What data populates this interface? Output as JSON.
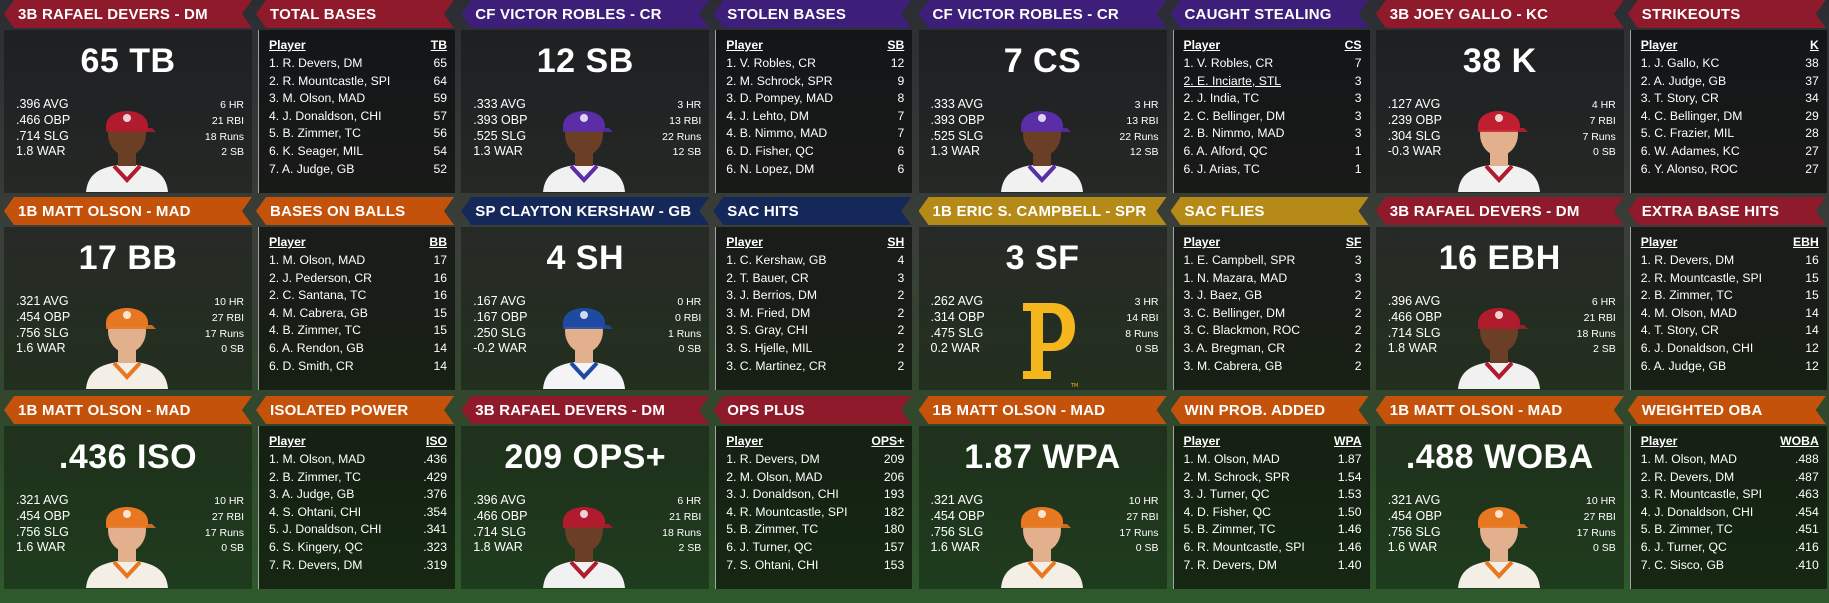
{
  "cards": [
    {
      "header": "3B RAFAEL DEVERS - DM",
      "category": "TOTAL BASES",
      "color": "red",
      "big": "65 TB",
      "avatar": "devers",
      "avg": ".396 AVG",
      "obp": ".466 OBP",
      "slg": ".714 SLG",
      "war": "1.8 WAR",
      "hr": "6 HR",
      "rbi": "21 RBI",
      "runs": "18 Runs",
      "sb": "2 SB",
      "col": "TB",
      "rows": [
        [
          "1. R. Devers, DM",
          "65"
        ],
        [
          "2. R. Mountcastle, SPI",
          "64"
        ],
        [
          "3. M. Olson, MAD",
          "59"
        ],
        [
          "4. J. Donaldson, CHI",
          "57"
        ],
        [
          "5. B. Zimmer, TC",
          "56"
        ],
        [
          "6. K. Seager, MIL",
          "54"
        ],
        [
          "7. A. Judge, GB",
          "52"
        ]
      ]
    },
    {
      "header": "CF VICTOR ROBLES - CR",
      "category": "STOLEN BASES",
      "color": "purple",
      "big": "12 SB",
      "avatar": "robles",
      "avg": ".333 AVG",
      "obp": ".393 OBP",
      "slg": ".525 SLG",
      "war": "1.3 WAR",
      "hr": "3 HR",
      "rbi": "13 RBI",
      "runs": "22 Runs",
      "sb": "12 SB",
      "col": "SB",
      "rows": [
        [
          "1. V. Robles, CR",
          "12"
        ],
        [
          "2. M. Schrock, SPR",
          "9"
        ],
        [
          "3. D. Pompey, MAD",
          "8"
        ],
        [
          "4. J. Lehto, DM",
          "7"
        ],
        [
          "4. B. Nimmo, MAD",
          "7"
        ],
        [
          "6. D. Fisher, QC",
          "6"
        ],
        [
          "6. N. Lopez, DM",
          "6"
        ]
      ]
    },
    {
      "header": "CF VICTOR ROBLES - CR",
      "category": "CAUGHT STEALING",
      "color": "purple",
      "big": "7 CS",
      "avatar": "robles",
      "avg": ".333 AVG",
      "obp": ".393 OBP",
      "slg": ".525 SLG",
      "war": "1.3 WAR",
      "hr": "3 HR",
      "rbi": "13 RBI",
      "runs": "22 Runs",
      "sb": "12 SB",
      "col": "CS",
      "rows": [
        [
          "1. V. Robles, CR",
          "7"
        ],
        [
          "2. E. Inciarte, STL",
          "3"
        ],
        [
          "2. J. India, TC",
          "3"
        ],
        [
          "2. C. Bellinger, DM",
          "3"
        ],
        [
          "2. B. Nimmo, MAD",
          "3"
        ],
        [
          "6. A. Alford, QC",
          "1"
        ],
        [
          "6. J. Arias, TC",
          "1"
        ]
      ]
    },
    {
      "header": "3B JOEY GALLO - KC",
      "category": "STRIKEOUTS",
      "color": "red",
      "big": "38 K",
      "avatar": "gallo",
      "avg": ".127 AVG",
      "obp": ".239 OBP",
      "slg": ".304 SLG",
      "war": "-0.3 WAR",
      "hr": "4 HR",
      "rbi": "7 RBI",
      "runs": "7 Runs",
      "sb": "0 SB",
      "col": "K",
      "rows": [
        [
          "1. J. Gallo, KC",
          "38"
        ],
        [
          "2. A. Judge, GB",
          "37"
        ],
        [
          "3. T. Story, CR",
          "34"
        ],
        [
          "4. C. Bellinger, DM",
          "29"
        ],
        [
          "5. C. Frazier, MIL",
          "28"
        ],
        [
          "6. W. Adames, KC",
          "27"
        ],
        [
          "6. Y. Alonso, ROC",
          "27"
        ]
      ]
    },
    {
      "header": "1B MATT OLSON - MAD",
      "category": "BASES ON BALLS",
      "color": "orange",
      "big": "17 BB",
      "avatar": "olson",
      "avg": ".321 AVG",
      "obp": ".454 OBP",
      "slg": ".756 SLG",
      "war": "1.6 WAR",
      "hr": "10 HR",
      "rbi": "27 RBI",
      "runs": "17 Runs",
      "sb": "0 SB",
      "col": "BB",
      "rows": [
        [
          "1. M. Olson, MAD",
          "17"
        ],
        [
          "2. J. Pederson, CR",
          "16"
        ],
        [
          "2. C. Santana, TC",
          "16"
        ],
        [
          "4. M. Cabrera, GB",
          "15"
        ],
        [
          "4. B. Zimmer, TC",
          "15"
        ],
        [
          "6. A. Rendon, GB",
          "14"
        ],
        [
          "6. D. Smith, CR",
          "14"
        ]
      ]
    },
    {
      "header": "SP CLAYTON KERSHAW - GB",
      "category": "SAC HITS",
      "color": "navy",
      "big": "4 SH",
      "avatar": "kershaw",
      "avg": ".167 AVG",
      "obp": ".167 OBP",
      "slg": ".250 SLG",
      "war": "-0.2 WAR",
      "hr": "0 HR",
      "rbi": "0 RBI",
      "runs": "1 Runs",
      "sb": "0 SB",
      "col": "SH",
      "rows": [
        [
          "1. C. Kershaw, GB",
          "4"
        ],
        [
          "2. T. Bauer, CR",
          "3"
        ],
        [
          "3. J. Berrios, DM",
          "2"
        ],
        [
          "3. M. Fried, DM",
          "2"
        ],
        [
          "3. S. Gray, CHI",
          "2"
        ],
        [
          "3. S. Hjelle, MIL",
          "2"
        ],
        [
          "3. C. Martinez, CR",
          "2"
        ]
      ]
    },
    {
      "header": "1B ERIC S. CAMPBELL - SPR",
      "category": "SAC FLIES",
      "color": "gold",
      "big": "3 SF",
      "avatar": "logo",
      "avg": ".262 AVG",
      "obp": ".314 OBP",
      "slg": ".475 SLG",
      "war": "0.2 WAR",
      "hr": "3 HR",
      "rbi": "14 RBI",
      "runs": "8 Runs",
      "sb": "0 SB",
      "col": "SF",
      "rows": [
        [
          "1. E. Campbell, SPR",
          "3"
        ],
        [
          "1. N. Mazara, MAD",
          "3"
        ],
        [
          "3. J. Baez, GB",
          "2"
        ],
        [
          "3. C. Bellinger, DM",
          "2"
        ],
        [
          "3. C. Blackmon, ROC",
          "2"
        ],
        [
          "3. A. Bregman, CR",
          "2"
        ],
        [
          "3. M. Cabrera, GB",
          "2"
        ]
      ]
    },
    {
      "header": "3B RAFAEL DEVERS - DM",
      "category": "EXTRA BASE HITS",
      "color": "red",
      "big": "16 EBH",
      "avatar": "devers",
      "avg": ".396 AVG",
      "obp": ".466 OBP",
      "slg": ".714 SLG",
      "war": "1.8 WAR",
      "hr": "6 HR",
      "rbi": "21 RBI",
      "runs": "18 Runs",
      "sb": "2 SB",
      "col": "EBH",
      "rows": [
        [
          "1. R. Devers, DM",
          "16"
        ],
        [
          "2. R. Mountcastle, SPI",
          "15"
        ],
        [
          "2. B. Zimmer, TC",
          "15"
        ],
        [
          "4. M. Olson, MAD",
          "14"
        ],
        [
          "4. T. Story, CR",
          "14"
        ],
        [
          "6. J. Donaldson, CHI",
          "12"
        ],
        [
          "6. A. Judge, GB",
          "12"
        ]
      ]
    },
    {
      "header": "1B MATT OLSON - MAD",
      "category": "ISOLATED POWER",
      "color": "orange",
      "big": ".436 ISO",
      "avatar": "olson",
      "avg": ".321 AVG",
      "obp": ".454 OBP",
      "slg": ".756 SLG",
      "war": "1.6 WAR",
      "hr": "10 HR",
      "rbi": "27 RBI",
      "runs": "17 Runs",
      "sb": "0 SB",
      "col": "ISO",
      "rows": [
        [
          "1. M. Olson, MAD",
          ".436"
        ],
        [
          "2. B. Zimmer, TC",
          ".429"
        ],
        [
          "3. A. Judge, GB",
          ".376"
        ],
        [
          "4. S. Ohtani, CHI",
          ".354"
        ],
        [
          "5. J. Donaldson, CHI",
          ".341"
        ],
        [
          "6. S. Kingery, QC",
          ".323"
        ],
        [
          "7. R. Devers, DM",
          ".319"
        ]
      ]
    },
    {
      "header": "3B RAFAEL DEVERS - DM",
      "category": "OPS PLUS",
      "color": "red",
      "big": "209 OPS+",
      "avatar": "devers",
      "avg": ".396 AVG",
      "obp": ".466 OBP",
      "slg": ".714 SLG",
      "war": "1.8 WAR",
      "hr": "6 HR",
      "rbi": "21 RBI",
      "runs": "18 Runs",
      "sb": "2 SB",
      "col": "OPS+",
      "rows": [
        [
          "1. R. Devers, DM",
          "209"
        ],
        [
          "2. M. Olson, MAD",
          "206"
        ],
        [
          "3. J. Donaldson, CHI",
          "193"
        ],
        [
          "4. R. Mountcastle, SPI",
          "182"
        ],
        [
          "5. B. Zimmer, TC",
          "180"
        ],
        [
          "6. J. Turner, QC",
          "157"
        ],
        [
          "7. S. Ohtani, CHI",
          "153"
        ]
      ]
    },
    {
      "header": "1B MATT OLSON - MAD",
      "category": "WIN PROB. ADDED",
      "color": "orange",
      "big": "1.87 WPA",
      "avatar": "olson",
      "avg": ".321 AVG",
      "obp": ".454 OBP",
      "slg": ".756 SLG",
      "war": "1.6 WAR",
      "hr": "10 HR",
      "rbi": "27 RBI",
      "runs": "17 Runs",
      "sb": "0 SB",
      "col": "WPA",
      "rows": [
        [
          "1. M. Olson, MAD",
          "1.87"
        ],
        [
          "2. M. Schrock, SPR",
          "1.54"
        ],
        [
          "3. J. Turner, QC",
          "1.53"
        ],
        [
          "4. D. Fisher, QC",
          "1.50"
        ],
        [
          "5. B. Zimmer, TC",
          "1.46"
        ],
        [
          "6. R. Mountcastle, SPI",
          "1.46"
        ],
        [
          "7. R. Devers, DM",
          "1.40"
        ]
      ]
    },
    {
      "header": "1B MATT OLSON - MAD",
      "category": "WEIGHTED OBA",
      "color": "orange",
      "big": ".488 WOBA",
      "avatar": "olson",
      "avg": ".321 AVG",
      "obp": ".454 OBP",
      "slg": ".756 SLG",
      "war": "1.6 WAR",
      "hr": "10 HR",
      "rbi": "27 RBI",
      "runs": "17 Runs",
      "sb": "0 SB",
      "col": "WOBA",
      "rows": [
        [
          "1. M. Olson, MAD",
          ".488"
        ],
        [
          "2. R. Devers, DM",
          ".487"
        ],
        [
          "3. R. Mountcastle, SPI",
          ".463"
        ],
        [
          "4. J. Donaldson, CHI",
          ".454"
        ],
        [
          "5. B. Zimmer, TC",
          ".451"
        ],
        [
          "6. J. Turner, QC",
          ".416"
        ],
        [
          "7. C. Sisco, GB",
          ".410"
        ]
      ]
    }
  ],
  "table_label": "Player",
  "colors": {
    "red": "#8e1a2b",
    "purple": "#3d1f7a",
    "orange": "#c4520a",
    "navy": "#14285a",
    "gold": "#b68a17",
    "pirates_logo": "#f5b51d",
    "caps": {
      "devers": "#b01b2e",
      "robles": "#5a2ea6",
      "gallo": "#c01f2f",
      "olson": "#e87722",
      "kershaw": "#1f4aa3"
    }
  }
}
